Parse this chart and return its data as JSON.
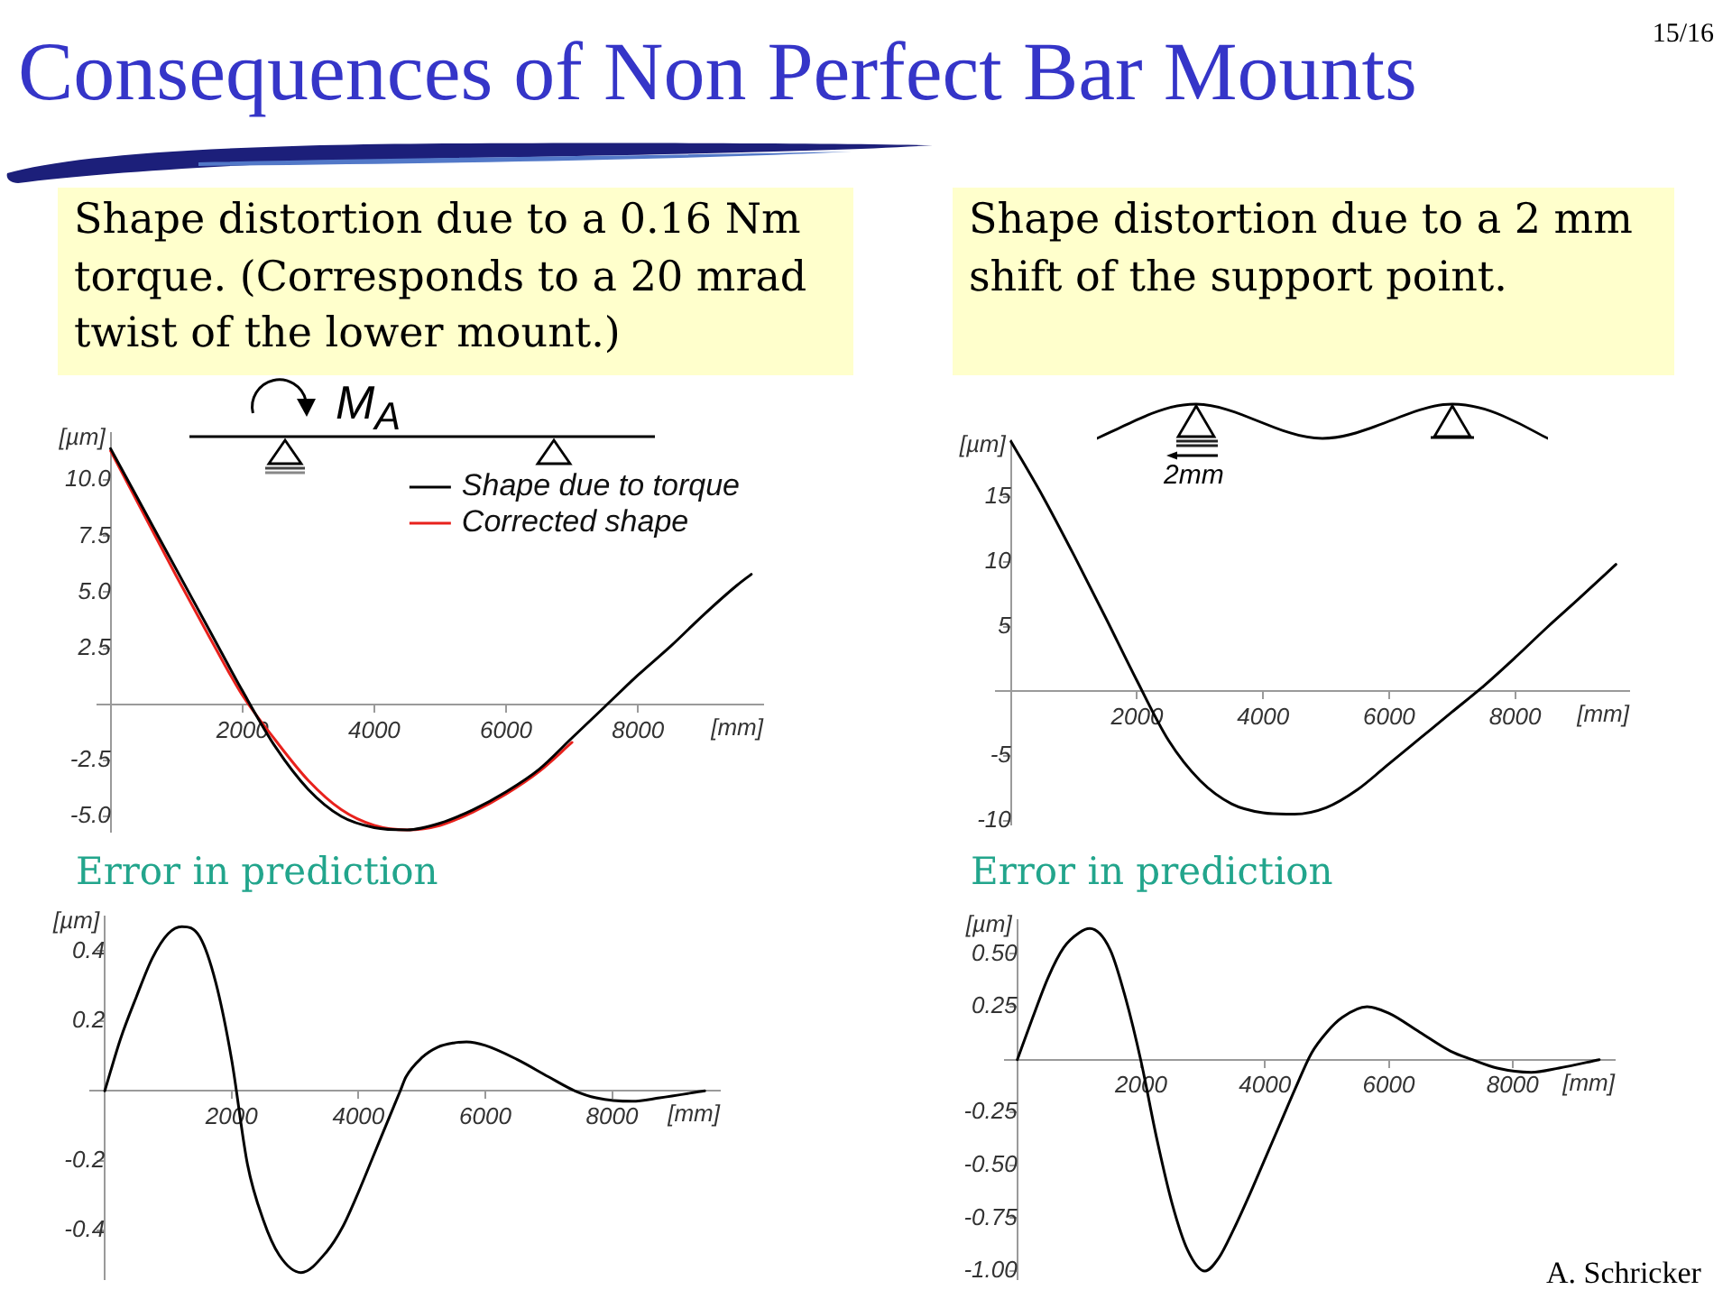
{
  "chart_data": [
    {
      "type": "line",
      "title": "Consequences of Non Perfect Bar Mounts",
      "subtitle": "Shape distortion due to a 0.16 Nm torque. (Corresponds to a 20 mrad twist of the lower mount.)",
      "xlabel": "[mm]",
      "ylabel": "[µm]",
      "annotations": [
        "M$_{A}$"
      ],
      "x": [
        0,
        500,
        1000,
        1500,
        2000,
        2500,
        3000,
        3500,
        4000,
        4500,
        5000,
        5500,
        6000,
        6500,
        7000,
        7500,
        8000,
        8500,
        9000,
        9500,
        9720
      ],
      "series": [
        {
          "name": "Shape due to torque",
          "color": "#000000",
          "values": [
            11.4,
            8.7,
            6.0,
            3.3,
            0.6,
            -1.9,
            -3.8,
            -5.0,
            -5.5,
            -5.6,
            -5.3,
            -4.7,
            -3.9,
            -2.9,
            -1.5,
            -0.1,
            1.3,
            2.6,
            4.0,
            5.3,
            5.8
          ]
        },
        {
          "name": "Corrected shape",
          "color": "#e8211c",
          "values": [
            11.3,
            8.5,
            5.7,
            3.0,
            0.4,
            -1.6,
            -3.4,
            -4.7,
            -5.4,
            -5.6,
            -5.4,
            -4.8,
            -4.0,
            -3.0,
            -1.7,
            null,
            null,
            null,
            null,
            null,
            null
          ]
        }
      ],
      "xlim": [
        -200,
        9900
      ],
      "ylim": [
        -5.7,
        12.1
      ],
      "xticks": [
        2000,
        4000,
        6000,
        8000
      ],
      "yticks": [
        {
          "value": -5,
          "label": "-5.0"
        },
        -2.5,
        2.5,
        {
          "value": 5,
          "label": "5.0"
        },
        7.5,
        {
          "value": 10,
          "label": "10.0"
        }
      ],
      "legend": "top right"
    },
    {
      "type": "line",
      "subtitle": "Shape distortion due to a 2 mm shift of the support point.",
      "xlabel": "[mm]",
      "ylabel": "[µm]",
      "annotations": [
        "15/16",
        "2mm"
      ],
      "x": [
        0,
        500,
        1000,
        1500,
        2000,
        2500,
        3000,
        3500,
        4000,
        4370,
        4500,
        5000,
        5500,
        6000,
        6500,
        7000,
        7500,
        8000,
        8500,
        9000,
        9600
      ],
      "series": [
        {
          "color": "#000000",
          "values": [
            19.3,
            15.1,
            10.5,
            5.7,
            0.8,
            -3.8,
            -6.9,
            -8.7,
            -9.4,
            -9.5,
            -9.5,
            -9.0,
            -7.6,
            -5.6,
            -3.6,
            -1.6,
            0.4,
            2.6,
            4.9,
            7.1,
            9.8
          ]
        }
      ],
      "xlim": [
        -240,
        9810
      ],
      "ylim": [
        -10.3,
        19.4
      ],
      "xticks": [
        2000,
        4000,
        6000,
        8000
      ],
      "yticks": [
        -10,
        -5,
        5,
        10,
        15
      ]
    },
    {
      "type": "line",
      "title": "Error in prediction",
      "xlabel": "[mm]",
      "ylabel": "[µm]",
      "x": [
        0,
        250,
        500,
        750,
        1000,
        1215,
        1500,
        1750,
        2000,
        2250,
        2500,
        2750,
        3095,
        3500,
        3750,
        4000,
        4250,
        4500,
        4660,
        4750,
        5000,
        5250,
        5500,
        5705,
        6000,
        6500,
        7000,
        7415,
        7750,
        8320,
        8750,
        9460
      ],
      "series": [
        {
          "color": "#000000",
          "values": [
            0,
            0.15,
            0.27,
            0.38,
            0.45,
            0.47,
            0.44,
            0.31,
            0.09,
            -0.21,
            -0.37,
            -0.47,
            -0.52,
            -0.46,
            -0.39,
            -0.29,
            -0.18,
            -0.07,
            0,
            0.04,
            0.095,
            0.125,
            0.137,
            0.14,
            0.13,
            0.09,
            0.04,
            0,
            -0.02,
            -0.03,
            -0.02,
            0
          ]
        }
      ],
      "xlim": [
        -230,
        9700
      ],
      "ylim": [
        -0.54,
        0.5
      ],
      "xticks": [
        2000,
        4000,
        6000,
        8000
      ],
      "yticks": [
        -0.4,
        -0.2,
        0.2,
        0.4
      ]
    },
    {
      "type": "line",
      "title": "Error in prediction",
      "xlabel": "[mm]",
      "ylabel": "[µm]",
      "annotations": [
        "A. Schricker"
      ],
      "x": [
        0,
        250,
        500,
        750,
        1000,
        1170,
        1500,
        1750,
        2000,
        2250,
        2500,
        2750,
        3030,
        3250,
        3500,
        3750,
        4000,
        4250,
        4500,
        4750,
        5000,
        5250,
        5650,
        6000,
        6500,
        7000,
        7350,
        7750,
        8300,
        8750,
        9400
      ],
      "series": [
        {
          "color": "#000000",
          "values": [
            0,
            0.2,
            0.39,
            0.53,
            0.6,
            0.62,
            0.52,
            0.29,
            -0.01,
            -0.37,
            -0.68,
            -0.9,
            -1.0,
            -0.94,
            -0.8,
            -0.64,
            -0.47,
            -0.3,
            -0.13,
            0.03,
            0.13,
            0.2,
            0.25,
            0.22,
            0.13,
            0.04,
            0,
            -0.04,
            -0.06,
            -0.04,
            0
          ]
        }
      ],
      "xlim": [
        -200,
        9650
      ],
      "ylim": [
        -1.04,
        0.66
      ],
      "xticks": [
        2000,
        4000,
        6000,
        8000
      ],
      "yticks": [
        {
          "value": -1,
          "label": "-1.00"
        },
        -0.75,
        {
          "value": -0.5,
          "label": "-0.50"
        },
        -0.25,
        0.25,
        {
          "value": 0.5,
          "label": "0.50"
        }
      ]
    }
  ]
}
